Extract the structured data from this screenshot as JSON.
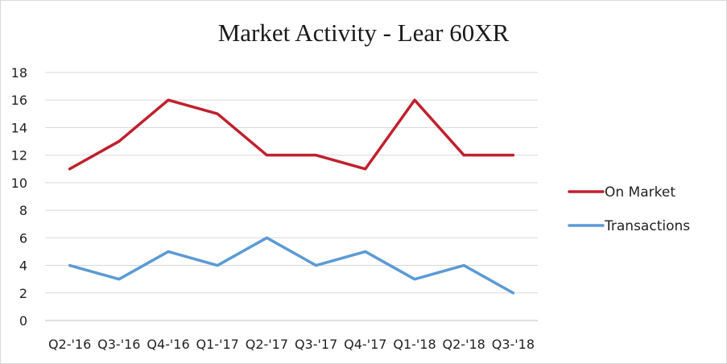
{
  "chart_data": {
    "type": "line",
    "title": "Market Activity - Lear 60XR",
    "categories": [
      "Q2-'16",
      "Q3-'16",
      "Q4-'16",
      "Q1-'17",
      "Q2-'17",
      "Q3-'17",
      "Q4-'17",
      "Q1-'18",
      "Q2-'18",
      "Q3-'18"
    ],
    "series": [
      {
        "name": "On Market",
        "values": [
          11,
          13,
          16,
          15,
          12,
          12,
          11,
          16,
          12,
          12
        ],
        "color": "#c0202e"
      },
      {
        "name": "Transactions",
        "values": [
          4,
          3,
          5,
          4,
          6,
          4,
          5,
          3,
          4,
          2
        ],
        "color": "#5b9bd5"
      }
    ],
    "ylim": [
      0,
      18
    ],
    "yticks": [
      0,
      2,
      4,
      6,
      8,
      10,
      12,
      14,
      16,
      18
    ],
    "grid": true,
    "legend_position": "right"
  }
}
